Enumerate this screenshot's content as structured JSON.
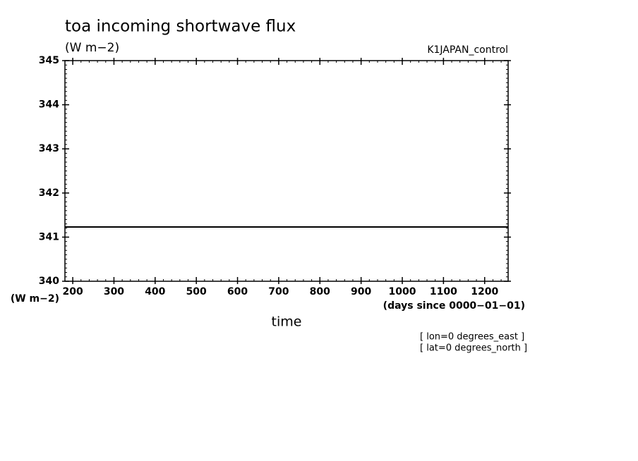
{
  "chart_data": {
    "type": "line",
    "title": "toa incoming shortwave flux",
    "subtitle": "(W m−2)",
    "experiment": "K1JAPAN_control",
    "y_unit_label": "(W m−2)",
    "x_unit_label": "(days since 0000−01−01)",
    "x_label": "time",
    "annotations": [
      "[ lon=0 degrees_east ]",
      "[ lat=0 degrees_north ]"
    ],
    "x": [
      181,
      1257
    ],
    "series": [
      {
        "name": "toa incoming shortwave flux",
        "color": "#000000",
        "values": [
          341.23,
          341.23
        ]
      }
    ],
    "xlim": [
      181,
      1257
    ],
    "xticks": [
      200,
      300,
      400,
      500,
      600,
      700,
      800,
      900,
      1000,
      1100,
      1200
    ],
    "ylim": [
      340,
      345
    ],
    "yticks": [
      340,
      341,
      342,
      343,
      344,
      345
    ],
    "grid": false
  }
}
